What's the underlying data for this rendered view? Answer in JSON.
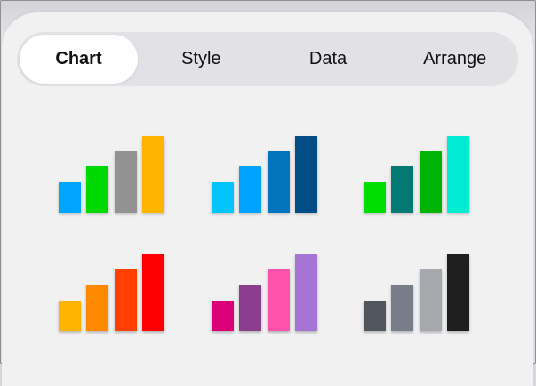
{
  "tabs": [
    {
      "label": "Chart",
      "active": true
    },
    {
      "label": "Style",
      "active": false
    },
    {
      "label": "Data",
      "active": false
    },
    {
      "label": "Arrange",
      "active": false
    }
  ],
  "bar_levels": [
    2,
    3,
    4,
    5
  ],
  "chart_styles": [
    {
      "colors": [
        "#00a5ff",
        "#00d900",
        "#929292",
        "#ffb500"
      ]
    },
    {
      "colors": [
        "#00c3ff",
        "#00a3ff",
        "#0074bd",
        "#004e85"
      ]
    },
    {
      "colors": [
        "#00dd00",
        "#007a73",
        "#00b300",
        "#00ecd2"
      ]
    },
    {
      "colors": [
        "#ffb500",
        "#ff8a00",
        "#ff4000",
        "#ff0000"
      ]
    },
    {
      "colors": [
        "#dc0078",
        "#8b3d8e",
        "#ff52aa",
        "#a574d4"
      ]
    },
    {
      "colors": [
        "#51565f",
        "#787e89",
        "#a5a9ad",
        "#1e1e1e"
      ]
    }
  ]
}
